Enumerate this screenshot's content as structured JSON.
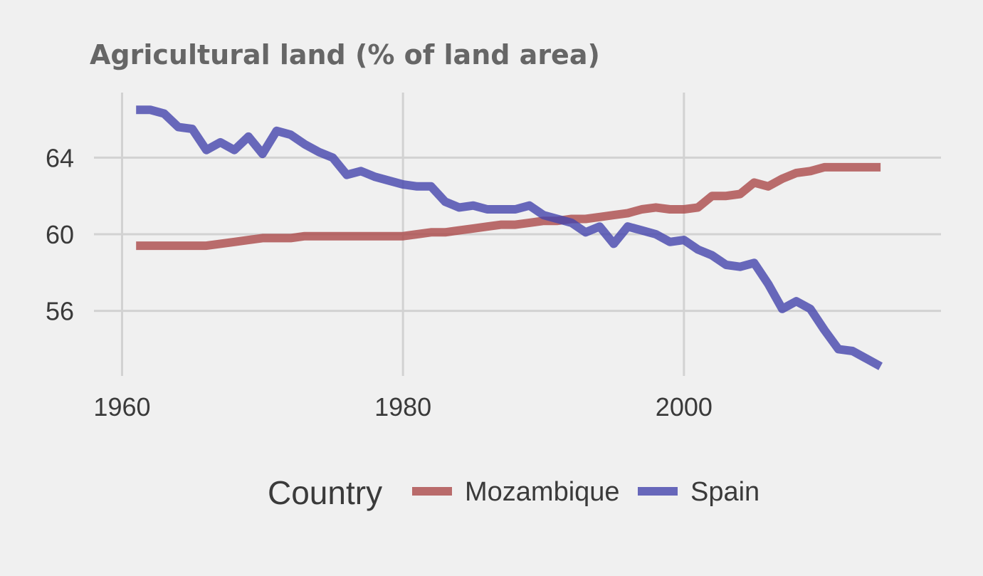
{
  "chart_data": {
    "type": "line",
    "title": "Agricultural land (% of land area)",
    "xlabel": "",
    "ylabel": "",
    "xlim": [
      1958,
      2018.3
    ],
    "ylim": [
      52.6,
      67.4
    ],
    "x_ticks": [
      1960,
      1980,
      2000
    ],
    "y_ticks": [
      56,
      60,
      64
    ],
    "grid": true,
    "legend": {
      "title": "Country",
      "position": "bottom"
    },
    "series": [
      {
        "name": "Mozambique",
        "color": "#ab4a4a",
        "x": [
          1961,
          1962,
          1963,
          1964,
          1965,
          1966,
          1967,
          1968,
          1969,
          1970,
          1971,
          1972,
          1973,
          1974,
          1975,
          1976,
          1977,
          1978,
          1979,
          1980,
          1981,
          1982,
          1983,
          1984,
          1985,
          1986,
          1987,
          1988,
          1989,
          1990,
          1991,
          1992,
          1993,
          1994,
          1995,
          1996,
          1997,
          1998,
          1999,
          2000,
          2001,
          2002,
          2003,
          2004,
          2005,
          2006,
          2007,
          2008,
          2009,
          2010,
          2011,
          2012,
          2013,
          2014
        ],
        "values": [
          59.4,
          59.4,
          59.4,
          59.4,
          59.4,
          59.4,
          59.5,
          59.6,
          59.7,
          59.8,
          59.8,
          59.8,
          59.9,
          59.9,
          59.9,
          59.9,
          59.9,
          59.9,
          59.9,
          59.9,
          60.0,
          60.1,
          60.1,
          60.2,
          60.3,
          60.4,
          60.5,
          60.5,
          60.6,
          60.7,
          60.7,
          60.8,
          60.8,
          60.9,
          61.0,
          61.1,
          61.3,
          61.4,
          61.3,
          61.3,
          61.4,
          62.0,
          62.0,
          62.1,
          62.7,
          62.5,
          62.9,
          63.2,
          63.3,
          63.5,
          63.5,
          63.5,
          63.5,
          63.5
        ]
      },
      {
        "name": "Spain",
        "color": "#4545ad",
        "x": [
          1961,
          1962,
          1963,
          1964,
          1965,
          1966,
          1967,
          1968,
          1969,
          1970,
          1971,
          1972,
          1973,
          1974,
          1975,
          1976,
          1977,
          1978,
          1979,
          1980,
          1981,
          1982,
          1983,
          1984,
          1985,
          1986,
          1987,
          1988,
          1989,
          1990,
          1991,
          1992,
          1993,
          1994,
          1995,
          1996,
          1997,
          1998,
          1999,
          2000,
          2001,
          2002,
          2003,
          2004,
          2005,
          2006,
          2007,
          2008,
          2009,
          2010,
          2011,
          2012,
          2013,
          2014
        ],
        "values": [
          66.5,
          66.5,
          66.3,
          65.6,
          65.5,
          64.4,
          64.8,
          64.4,
          65.1,
          64.2,
          65.4,
          65.2,
          64.7,
          64.3,
          64.0,
          63.1,
          63.3,
          63.0,
          62.8,
          62.6,
          62.5,
          62.5,
          61.7,
          61.4,
          61.5,
          61.3,
          61.3,
          61.3,
          61.5,
          61.0,
          60.8,
          60.6,
          60.1,
          60.4,
          59.5,
          60.4,
          60.2,
          60.0,
          59.6,
          59.7,
          59.2,
          58.9,
          58.4,
          58.3,
          58.5,
          57.4,
          56.1,
          56.5,
          56.1,
          55.0,
          54.0,
          53.9,
          53.5,
          53.1
        ]
      }
    ]
  }
}
